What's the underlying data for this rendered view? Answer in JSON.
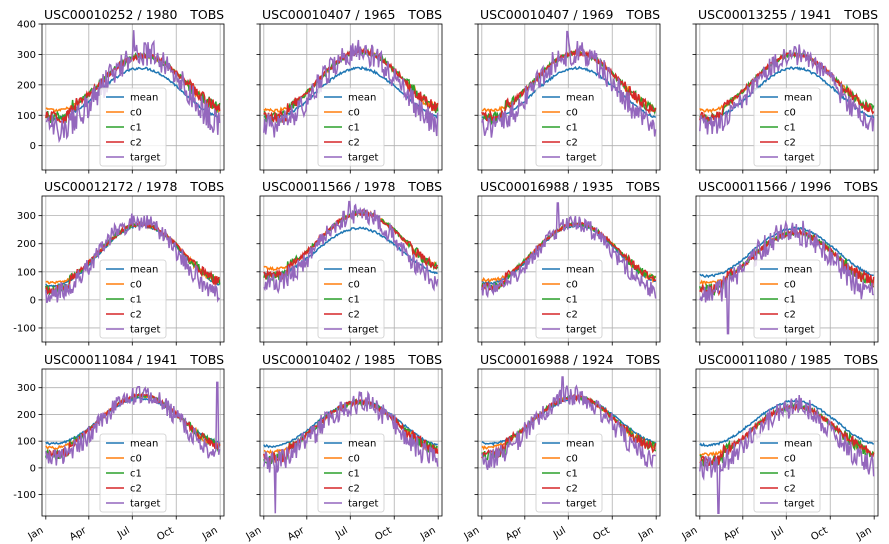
{
  "figure": {
    "background": "#ffffff"
  },
  "chart_data": {
    "type": "line",
    "layout": {
      "rows": 3,
      "cols": 4,
      "sharex": true,
      "sharey": "row"
    },
    "series_names": [
      "mean",
      "c0",
      "c1",
      "c2",
      "target"
    ],
    "colors": {
      "mean": "#1f77b4",
      "c0": "#ff7f0e",
      "c1": "#2ca02c",
      "c2": "#d62728",
      "target": "#9467bd"
    },
    "x_range_day": [
      1,
      366
    ],
    "xticks": [
      {
        "label": "Jan",
        "day": 1
      },
      {
        "label": "Apr",
        "day": 91
      },
      {
        "label": "Jul",
        "day": 182
      },
      {
        "label": "Oct",
        "day": 274
      },
      {
        "label": "Jan",
        "day": 366
      }
    ],
    "rows": [
      {
        "ylim": [
          -80,
          400
        ],
        "yticks": [
          0,
          100,
          200,
          300,
          400
        ]
      },
      {
        "ylim": [
          -150,
          370
        ],
        "yticks": [
          -100,
          0,
          100,
          200,
          300
        ]
      },
      {
        "ylim": [
          -180,
          370
        ],
        "yticks": [
          -100,
          0,
          100,
          200,
          300
        ]
      }
    ],
    "legend": {
      "position": "lower center",
      "entries": [
        "mean",
        "c0",
        "c1",
        "c2",
        "target"
      ]
    },
    "grid": true,
    "subplots": [
      {
        "station": "USC00010252 / 1980",
        "var": "TOBS",
        "mean": {
          "min": 90,
          "max": 255,
          "peak_day": 200
        },
        "model": {
          "min": 115,
          "max": 295,
          "peak_day": 205
        },
        "target": {
          "min": 60,
          "max": 305,
          "peak_day": 205
        },
        "noise": 45,
        "spike": [
          185,
          380
        ]
      },
      {
        "station": "USC00010407 / 1965",
        "var": "TOBS",
        "mean": {
          "min": 90,
          "max": 255,
          "peak_day": 200
        },
        "model": {
          "min": 115,
          "max": 310,
          "peak_day": 205
        },
        "target": {
          "min": 65,
          "max": 310,
          "peak_day": 200
        },
        "noise": 40,
        "spike": null
      },
      {
        "station": "USC00010407 / 1969",
        "var": "TOBS",
        "mean": {
          "min": 90,
          "max": 255,
          "peak_day": 200
        },
        "model": {
          "min": 115,
          "max": 305,
          "peak_day": 200
        },
        "target": {
          "min": 60,
          "max": 305,
          "peak_day": 195
        },
        "noise": 40,
        "spike": [
          180,
          375
        ]
      },
      {
        "station": "USC00013255 / 1941",
        "var": "TOBS",
        "mean": {
          "min": 90,
          "max": 255,
          "peak_day": 200
        },
        "model": {
          "min": 115,
          "max": 300,
          "peak_day": 200
        },
        "target": {
          "min": 65,
          "max": 300,
          "peak_day": 200
        },
        "noise": 35,
        "spike": null
      },
      {
        "station": "USC00012172 / 1978",
        "var": "TOBS",
        "mean": {
          "min": 50,
          "max": 265,
          "peak_day": 200
        },
        "model": {
          "min": 60,
          "max": 270,
          "peak_day": 200
        },
        "target": {
          "min": 20,
          "max": 280,
          "peak_day": 195
        },
        "noise": 35,
        "spike": null
      },
      {
        "station": "USC00011566 / 1978",
        "var": "TOBS",
        "mean": {
          "min": 90,
          "max": 255,
          "peak_day": 200
        },
        "model": {
          "min": 110,
          "max": 310,
          "peak_day": 205
        },
        "target": {
          "min": 60,
          "max": 305,
          "peak_day": 200
        },
        "noise": 35,
        "spike": [
          180,
          350
        ]
      },
      {
        "station": "USC00016988 / 1935",
        "var": "TOBS",
        "mean": {
          "min": 60,
          "max": 265,
          "peak_day": 200
        },
        "model": {
          "min": 70,
          "max": 270,
          "peak_day": 200
        },
        "target": {
          "min": 30,
          "max": 270,
          "peak_day": 195
        },
        "noise": 30,
        "spike": [
          160,
          345
        ]
      },
      {
        "station": "USC00011566 / 1996",
        "var": "TOBS",
        "mean": {
          "min": 85,
          "max": 255,
          "peak_day": 200
        },
        "model": {
          "min": 60,
          "max": 240,
          "peak_day": 200
        },
        "target": {
          "min": 20,
          "max": 245,
          "peak_day": 195
        },
        "noise": 45,
        "spike": [
          60,
          -120
        ]
      },
      {
        "station": "USC00011084 / 1941",
        "var": "TOBS",
        "mean": {
          "min": 90,
          "max": 260,
          "peak_day": 200
        },
        "model": {
          "min": 75,
          "max": 270,
          "peak_day": 200
        },
        "target": {
          "min": 40,
          "max": 275,
          "peak_day": 200
        },
        "noise": 35,
        "spike": [
          360,
          320
        ]
      },
      {
        "station": "USC00010402 / 1985",
        "var": "TOBS",
        "mean": {
          "min": 80,
          "max": 250,
          "peak_day": 200
        },
        "model": {
          "min": 60,
          "max": 245,
          "peak_day": 200
        },
        "target": {
          "min": 20,
          "max": 245,
          "peak_day": 200
        },
        "noise": 45,
        "spike": [
          25,
          -170
        ]
      },
      {
        "station": "USC00016988 / 1924",
        "var": "TOBS",
        "mean": {
          "min": 90,
          "max": 260,
          "peak_day": 200
        },
        "model": {
          "min": 75,
          "max": 265,
          "peak_day": 195
        },
        "target": {
          "min": 30,
          "max": 270,
          "peak_day": 190
        },
        "noise": 40,
        "spike": [
          170,
          340
        ]
      },
      {
        "station": "USC00011080 / 1985",
        "var": "TOBS",
        "mean": {
          "min": 85,
          "max": 250,
          "peak_day": 200
        },
        "model": {
          "min": 50,
          "max": 230,
          "peak_day": 200
        },
        "target": {
          "min": 0,
          "max": 230,
          "peak_day": 200
        },
        "noise": 45,
        "spike": [
          40,
          -170
        ]
      }
    ]
  }
}
